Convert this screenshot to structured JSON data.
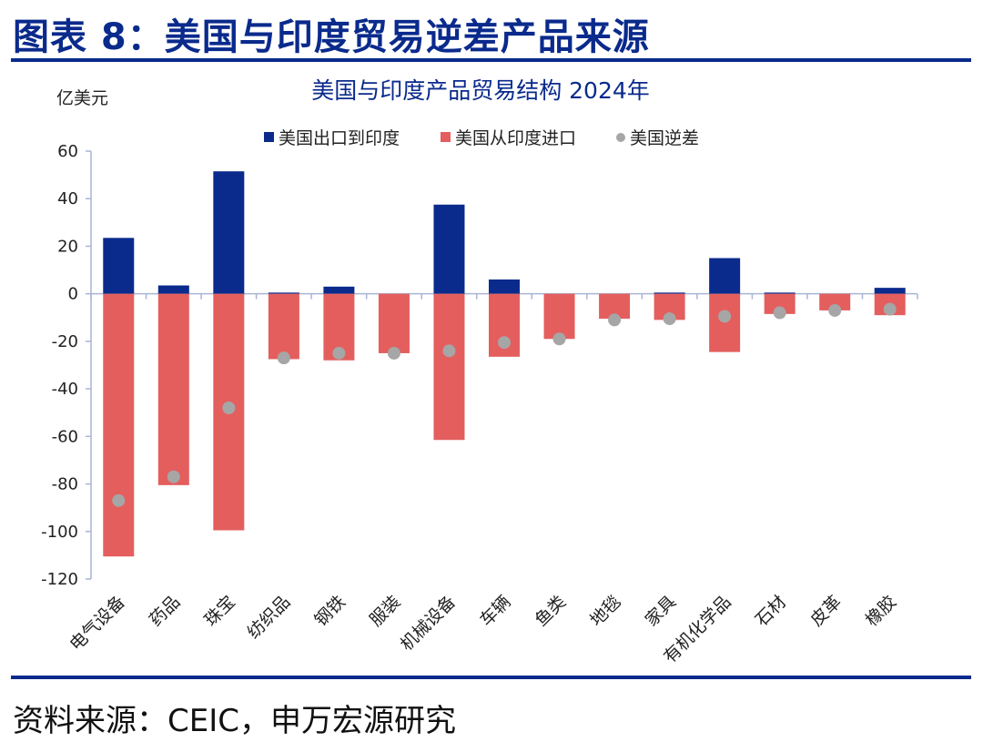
{
  "figure_title": "图表 8：美国与印度贸易逆差产品来源",
  "source_note": "资料来源：CEIC，申万宏源研究",
  "chart_data": {
    "type": "bar",
    "title": "美国与印度产品贸易结构 2024年",
    "unit_label": "亿美元",
    "ylim": [
      -120,
      60
    ],
    "yticks": [
      60,
      40,
      20,
      0,
      -20,
      -40,
      -60,
      -80,
      -100,
      -120
    ],
    "grid": false,
    "legend_position": "top",
    "categories": [
      "电气设备",
      "药品",
      "珠宝",
      "纺织品",
      "钢铁",
      "服装",
      "机械设备",
      "车辆",
      "鱼类",
      "地毯",
      "家具",
      "有机化学品",
      "石材",
      "皮革",
      "橡胶"
    ],
    "series": [
      {
        "name": "美国出口到印度",
        "kind": "bar",
        "color": "#0a2a8c",
        "values": [
          23.5,
          3.5,
          51.5,
          0.5,
          3,
          0,
          37.5,
          6,
          0,
          0,
          0.5,
          15,
          0.5,
          0,
          2.5
        ]
      },
      {
        "name": "美国从印度进口",
        "kind": "bar",
        "color": "#e45e5e",
        "values": [
          -110.5,
          -80.5,
          -99.5,
          -27.5,
          -28,
          -25,
          -61.5,
          -26.5,
          -19,
          -10.5,
          -11,
          -24.5,
          -8.5,
          -7,
          -9
        ]
      },
      {
        "name": "美国逆差",
        "kind": "marker",
        "color": "#a6a6a6",
        "values": [
          -87,
          -77,
          -48,
          -27,
          -25,
          -25,
          -24,
          -20.5,
          -19,
          -11,
          -10.5,
          -9.5,
          -8,
          -7,
          -6.5
        ]
      }
    ]
  }
}
